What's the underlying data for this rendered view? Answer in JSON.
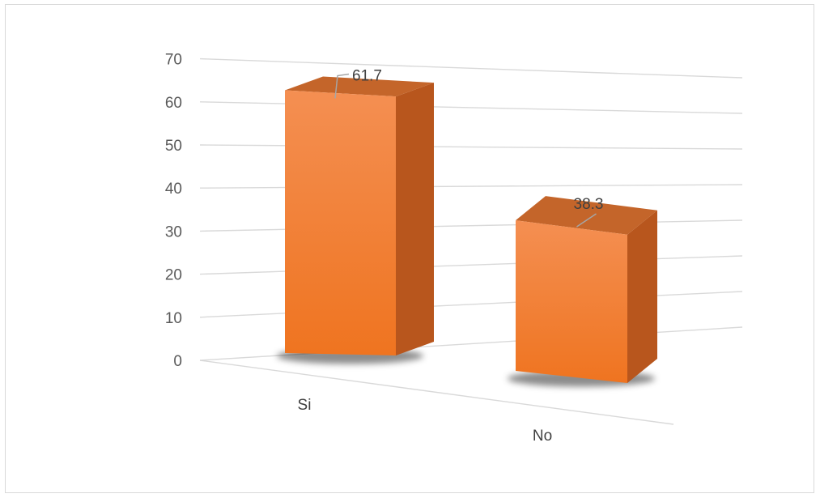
{
  "chart_data": {
    "type": "bar",
    "style": "3d-column",
    "categories": [
      "Si",
      "No"
    ],
    "values": [
      61.7,
      38.3
    ],
    "value_labels": [
      "61.7",
      "38.3"
    ],
    "y_ticks": [
      "0",
      "10",
      "20",
      "30",
      "40",
      "50",
      "60",
      "70"
    ],
    "ylim": [
      0,
      70
    ],
    "grid": true,
    "legend": "none",
    "title": "",
    "xlabel": "",
    "ylabel": ""
  },
  "colors": {
    "bar_front_top": "#f48f52",
    "bar_front_bottom": "#ef7420",
    "bar_side": "#b8561d",
    "bar_top": "#c4652a",
    "gridline": "#d9d9d9",
    "label_line": "#a6a6a6",
    "frame_border": "#d9d9d9"
  }
}
